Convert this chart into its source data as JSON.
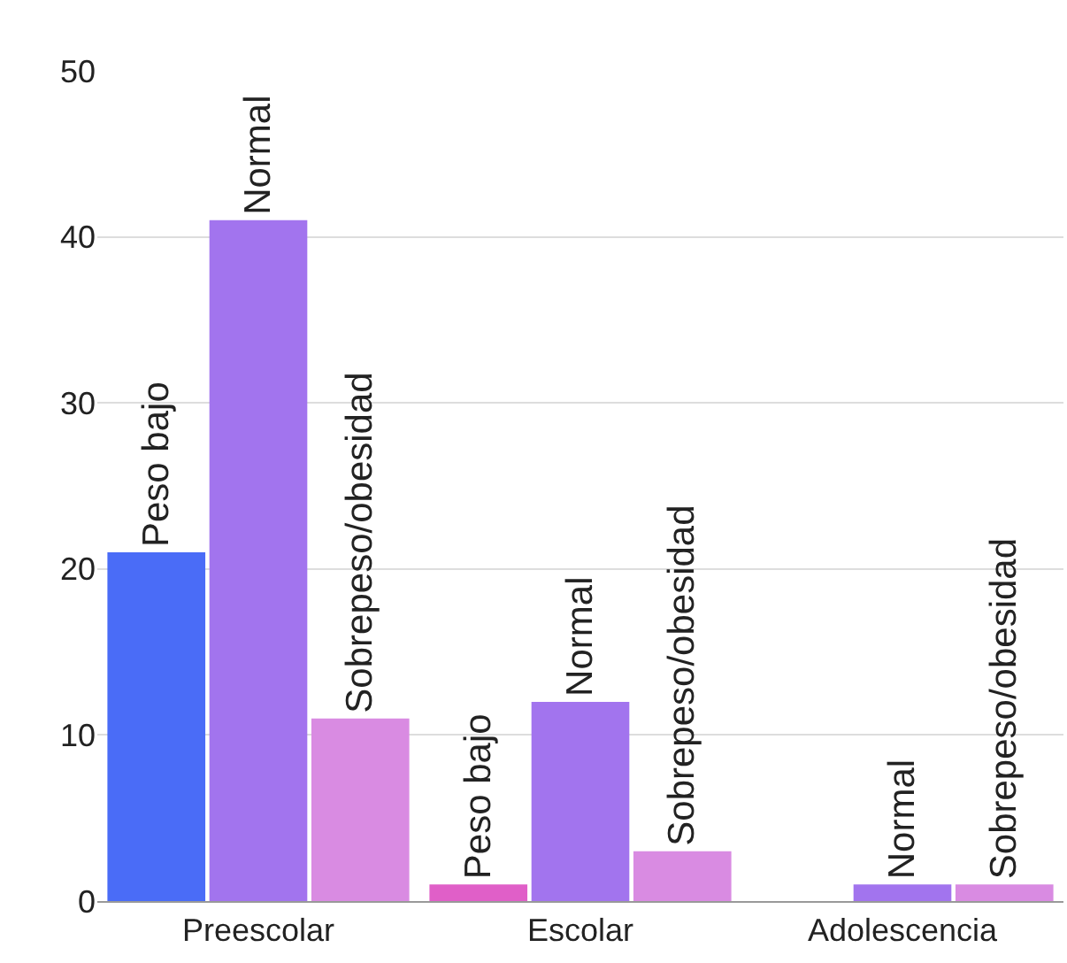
{
  "chart_data": {
    "type": "bar",
    "categories": [
      "Preescolar",
      "Escolar",
      "Adolescencia"
    ],
    "series": [
      {
        "name": "Peso bajo",
        "colors": [
          "#4a6cf7",
          "#e05fc8",
          "#e05fc8"
        ],
        "values": [
          21,
          1,
          null
        ]
      },
      {
        "name": "Normal",
        "color": "#a274ee",
        "values": [
          41,
          12,
          1
        ]
      },
      {
        "name": "Sobrepeso/obesidad",
        "color": "#d98be2",
        "values": [
          11,
          3,
          1
        ]
      }
    ],
    "ylim": [
      0,
      50
    ],
    "yticks": [
      0,
      10,
      20,
      30,
      40,
      50
    ],
    "grid": "y",
    "legend": false
  }
}
